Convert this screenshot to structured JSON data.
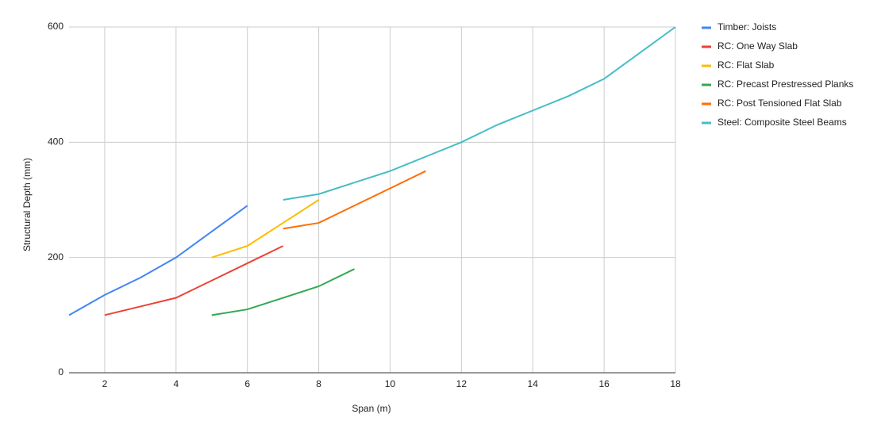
{
  "chart_data": {
    "type": "line",
    "x_label": "Span (m)",
    "y_label": "Structural Depth (mm)",
    "x": [
      1,
      2,
      3,
      4,
      5,
      6,
      7,
      8,
      9,
      10,
      11,
      12,
      13,
      14,
      15,
      16,
      17,
      18
    ],
    "series": [
      {
        "name": "Timber: Joists",
        "color": "#4285f4",
        "values": [
          100,
          135,
          165,
          200,
          245,
          290,
          null,
          null,
          null,
          null,
          null,
          null,
          null,
          null,
          null,
          null,
          null,
          null
        ]
      },
      {
        "name": "RC: One Way Slab",
        "color": "#ea4335",
        "values": [
          null,
          100,
          115,
          130,
          160,
          190,
          220,
          null,
          null,
          null,
          null,
          null,
          null,
          null,
          null,
          null,
          null,
          null
        ]
      },
      {
        "name": "RC: Flat Slab",
        "color": "#fbbc04",
        "values": [
          null,
          null,
          null,
          null,
          200,
          220,
          260,
          300,
          null,
          null,
          null,
          null,
          null,
          null,
          null,
          null,
          null,
          null
        ]
      },
      {
        "name": "RC: Precast Prestressed Planks",
        "color": "#34a853",
        "values": [
          null,
          null,
          null,
          null,
          100,
          110,
          130,
          150,
          180,
          null,
          null,
          null,
          null,
          null,
          null,
          null,
          null,
          null
        ]
      },
      {
        "name": "RC: Post Tensioned Flat Slab",
        "color": "#ff6d01",
        "values": [
          null,
          null,
          null,
          null,
          null,
          null,
          250,
          260,
          290,
          320,
          350,
          null,
          null,
          null,
          null,
          null,
          null,
          null
        ]
      },
      {
        "name": "Steel: Composite Steel Beams",
        "color": "#46bdc6",
        "values": [
          null,
          null,
          null,
          null,
          null,
          null,
          300,
          310,
          330,
          350,
          375,
          400,
          430,
          455,
          480,
          510,
          555,
          600
        ]
      }
    ],
    "xlim": [
      1,
      18
    ],
    "xticks": [
      2,
      4,
      6,
      8,
      10,
      12,
      14,
      16,
      18
    ],
    "ylim": [
      0,
      600
    ],
    "yticks": [
      0,
      200,
      400,
      600
    ],
    "grid": true,
    "legend": "right"
  }
}
